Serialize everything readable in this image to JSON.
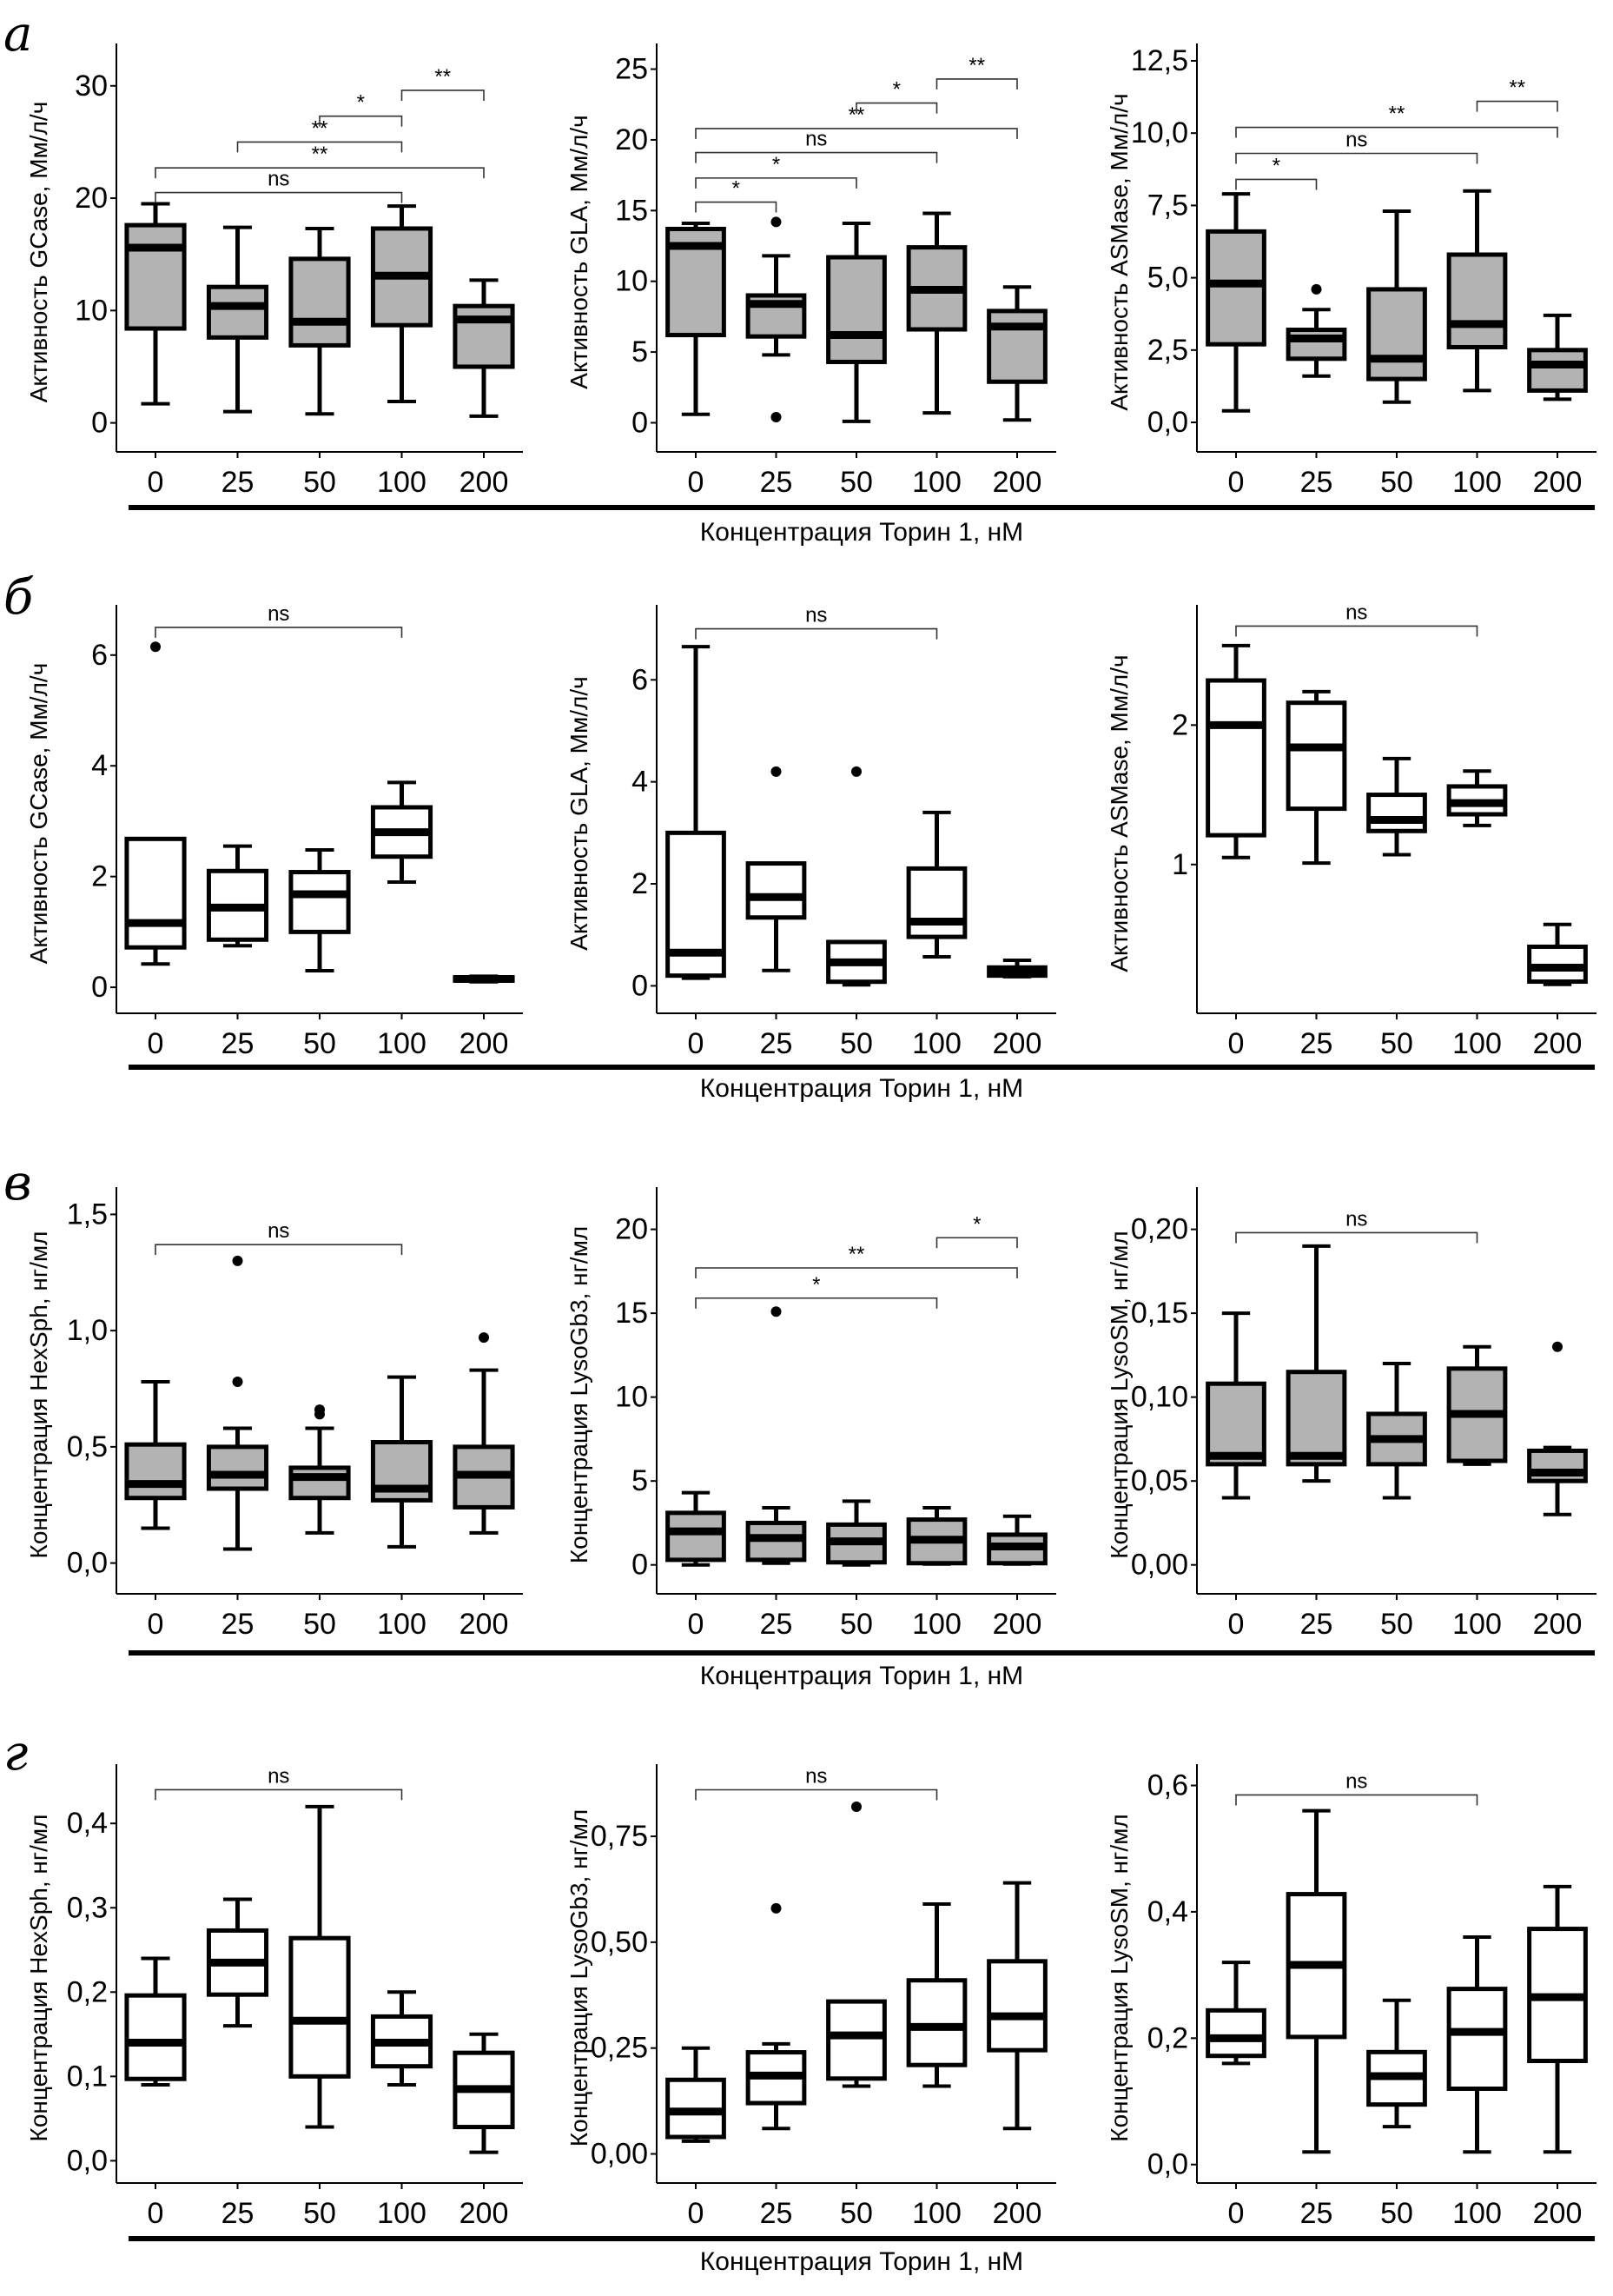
{
  "figure": {
    "x_caption": "Концентрация Торин 1, нМ",
    "fill_colors": {
      "gray": "#b3b3b3",
      "white": "#ffffff"
    }
  },
  "chart_data": [
    {
      "panel": "а",
      "type": "box",
      "row": 0,
      "col": 0,
      "fill": "gray",
      "ylabel": "Активность GCase, Мм/л/ч",
      "categories": [
        "0",
        "25",
        "50",
        "100",
        "200"
      ],
      "ylim": [
        -1.5,
        33
      ],
      "yticks": [
        0,
        10,
        20,
        30
      ],
      "ytick_labels": [
        "0",
        "10",
        "20",
        "30"
      ],
      "boxes": [
        {
          "min": 1.7,
          "q1": 8.4,
          "median": 15.6,
          "q3": 17.6,
          "max": 19.5,
          "outliers": []
        },
        {
          "min": 1.0,
          "q1": 7.6,
          "median": 10.4,
          "q3": 12.1,
          "max": 17.4,
          "outliers": []
        },
        {
          "min": 0.8,
          "q1": 6.9,
          "median": 9.0,
          "q3": 14.6,
          "max": 17.3,
          "outliers": []
        },
        {
          "min": 1.9,
          "q1": 8.7,
          "median": 13.1,
          "q3": 17.3,
          "max": 19.3,
          "outliers": []
        },
        {
          "min": 0.6,
          "q1": 5.0,
          "median": 9.2,
          "q3": 10.4,
          "max": 12.7,
          "outliers": []
        }
      ],
      "significance": [
        {
          "from": 0,
          "to": 3,
          "y": 20.5,
          "label": "ns"
        },
        {
          "from": 0,
          "to": 4,
          "y": 22.7,
          "label": "**"
        },
        {
          "from": 1,
          "to": 3,
          "y": 25.0,
          "label": "**"
        },
        {
          "from": 2,
          "to": 3,
          "y": 27.3,
          "label": "*"
        },
        {
          "from": 3,
          "to": 4,
          "y": 29.6,
          "label": "**"
        }
      ]
    },
    {
      "panel": "",
      "type": "box",
      "row": 0,
      "col": 1,
      "fill": "gray",
      "ylabel": "Активность GLA, Мм/л/ч",
      "categories": [
        "0",
        "25",
        "50",
        "100",
        "200"
      ],
      "ylim": [
        -1.2,
        26.2
      ],
      "yticks": [
        0,
        5,
        10,
        15,
        20,
        25
      ],
      "ytick_labels": [
        "0",
        "5",
        "10",
        "15",
        "20",
        "25"
      ],
      "boxes": [
        {
          "min": 0.6,
          "q1": 6.2,
          "median": 12.5,
          "q3": 13.7,
          "max": 14.1,
          "outliers": []
        },
        {
          "min": 4.8,
          "q1": 6.1,
          "median": 8.4,
          "q3": 9.0,
          "max": 11.8,
          "outliers": [
            14.2,
            0.4
          ]
        },
        {
          "min": 0.1,
          "q1": 4.3,
          "median": 6.2,
          "q3": 11.7,
          "max": 14.1,
          "outliers": []
        },
        {
          "min": 0.7,
          "q1": 6.6,
          "median": 9.4,
          "q3": 12.4,
          "max": 14.8,
          "outliers": []
        },
        {
          "min": 0.2,
          "q1": 2.9,
          "median": 6.8,
          "q3": 7.9,
          "max": 9.6,
          "outliers": []
        }
      ],
      "significance": [
        {
          "from": 0,
          "to": 1,
          "y": 15.6,
          "label": "*"
        },
        {
          "from": 0,
          "to": 2,
          "y": 17.3,
          "label": "*"
        },
        {
          "from": 0,
          "to": 3,
          "y": 19.1,
          "label": "ns"
        },
        {
          "from": 0,
          "to": 4,
          "y": 20.8,
          "label": "**"
        },
        {
          "from": 2,
          "to": 3,
          "y": 22.6,
          "label": "*"
        },
        {
          "from": 3,
          "to": 4,
          "y": 24.3,
          "label": "**"
        }
      ]
    },
    {
      "panel": "",
      "type": "box",
      "row": 0,
      "col": 2,
      "fill": "gray",
      "ylabel": "Активность ASMase, Мм/л/ч",
      "categories": [
        "0",
        "25",
        "50",
        "100",
        "200"
      ],
      "ylim": [
        -0.6,
        12.8
      ],
      "yticks": [
        0,
        2.5,
        5,
        7.5,
        10,
        12.5
      ],
      "ytick_labels": [
        "0,0",
        "2,5",
        "5,0",
        "7,5",
        "10,0",
        "12,5"
      ],
      "boxes": [
        {
          "min": 0.4,
          "q1": 2.7,
          "median": 4.8,
          "q3": 6.6,
          "max": 7.9,
          "outliers": []
        },
        {
          "min": 1.6,
          "q1": 2.2,
          "median": 2.9,
          "q3": 3.2,
          "max": 3.9,
          "outliers": [
            4.6
          ]
        },
        {
          "min": 0.7,
          "q1": 1.5,
          "median": 2.2,
          "q3": 4.6,
          "max": 7.3,
          "outliers": []
        },
        {
          "min": 1.1,
          "q1": 2.6,
          "median": 3.4,
          "q3": 5.8,
          "max": 8.0,
          "outliers": []
        },
        {
          "min": 0.8,
          "q1": 1.1,
          "median": 2.0,
          "q3": 2.5,
          "max": 3.7,
          "outliers": []
        }
      ],
      "significance": [
        {
          "from": 0,
          "to": 1,
          "y": 8.4,
          "label": "*"
        },
        {
          "from": 0,
          "to": 3,
          "y": 9.3,
          "label": "ns"
        },
        {
          "from": 0,
          "to": 4,
          "y": 10.2,
          "label": "**"
        },
        {
          "from": 3,
          "to": 4,
          "y": 11.1,
          "label": "**"
        }
      ]
    },
    {
      "panel": "б",
      "type": "box",
      "row": 1,
      "col": 0,
      "fill": "white",
      "ylabel": "Активность GCase, Мм/л/ч",
      "categories": [
        "0",
        "25",
        "50",
        "100",
        "200"
      ],
      "ylim": [
        -0.25,
        6.75
      ],
      "yticks": [
        0,
        2,
        4,
        6
      ],
      "ytick_labels": [
        "0",
        "2",
        "4",
        "6"
      ],
      "boxes": [
        {
          "min": 0.42,
          "q1": 0.72,
          "median": 1.16,
          "q3": 2.68,
          "max": 2.68,
          "outliers": [
            6.15
          ]
        },
        {
          "min": 0.75,
          "q1": 0.86,
          "median": 1.44,
          "q3": 2.1,
          "max": 2.55,
          "outliers": []
        },
        {
          "min": 0.3,
          "q1": 1.0,
          "median": 1.68,
          "q3": 2.08,
          "max": 2.48,
          "outliers": []
        },
        {
          "min": 1.9,
          "q1": 2.36,
          "median": 2.8,
          "q3": 3.25,
          "max": 3.7,
          "outliers": []
        },
        {
          "min": 0.1,
          "q1": 0.12,
          "median": 0.15,
          "q3": 0.18,
          "max": 0.2,
          "outliers": []
        }
      ],
      "significance": [
        {
          "from": 0,
          "to": 3,
          "y": 6.5,
          "label": "ns"
        }
      ]
    },
    {
      "panel": "",
      "type": "box",
      "row": 1,
      "col": 1,
      "fill": "white",
      "ylabel": "Активность GLA, Мм/л/ч",
      "categories": [
        "0",
        "25",
        "50",
        "100",
        "200"
      ],
      "ylim": [
        -0.3,
        7.3
      ],
      "yticks": [
        0,
        2,
        4,
        6
      ],
      "ytick_labels": [
        "0",
        "2",
        "4",
        "6"
      ],
      "boxes": [
        {
          "min": 0.15,
          "q1": 0.2,
          "median": 0.65,
          "q3": 3.0,
          "max": 6.65,
          "outliers": []
        },
        {
          "min": 0.3,
          "q1": 1.34,
          "median": 1.74,
          "q3": 2.4,
          "max": 2.4,
          "outliers": [
            4.2
          ]
        },
        {
          "min": 0.02,
          "q1": 0.08,
          "median": 0.46,
          "q3": 0.86,
          "max": 0.86,
          "outliers": [
            4.2
          ]
        },
        {
          "min": 0.57,
          "q1": 0.96,
          "median": 1.26,
          "q3": 2.3,
          "max": 3.4,
          "outliers": []
        },
        {
          "min": 0.18,
          "q1": 0.2,
          "median": 0.28,
          "q3": 0.36,
          "max": 0.5,
          "outliers": []
        }
      ],
      "significance": [
        {
          "from": 0,
          "to": 3,
          "y": 7.0,
          "label": "ns"
        }
      ]
    },
    {
      "panel": "",
      "type": "box",
      "row": 1,
      "col": 2,
      "fill": "white",
      "ylabel": "Активность ASMase, Мм/л/ч",
      "categories": [
        "0",
        "25",
        "50",
        "100",
        "200"
      ],
      "ylim": [
        0.02,
        2.8
      ],
      "yticks": [
        1,
        2
      ],
      "ytick_labels": [
        "1",
        "2"
      ],
      "boxes": [
        {
          "min": 1.05,
          "q1": 1.21,
          "median": 2.0,
          "q3": 2.32,
          "max": 2.57,
          "outliers": []
        },
        {
          "min": 1.01,
          "q1": 1.4,
          "median": 1.84,
          "q3": 2.16,
          "max": 2.24,
          "outliers": []
        },
        {
          "min": 1.07,
          "q1": 1.24,
          "median": 1.32,
          "q3": 1.5,
          "max": 1.76,
          "outliers": []
        },
        {
          "min": 1.28,
          "q1": 1.36,
          "median": 1.44,
          "q3": 1.56,
          "max": 1.67,
          "outliers": []
        },
        {
          "min": 0.14,
          "q1": 0.16,
          "median": 0.26,
          "q3": 0.41,
          "max": 0.57,
          "outliers": []
        }
      ],
      "significance": [
        {
          "from": 0,
          "to": 3,
          "y": 2.71,
          "label": "ns"
        }
      ]
    },
    {
      "panel": "в",
      "type": "box",
      "row": 2,
      "col": 0,
      "fill": "gray",
      "ylabel": "Концентрация HexSph, нг/мл",
      "categories": [
        "0",
        "25",
        "50",
        "100",
        "200"
      ],
      "ylim": [
        -0.08,
        1.58
      ],
      "yticks": [
        0,
        0.5,
        1.0,
        1.5
      ],
      "ytick_labels": [
        "0,0",
        "0,5",
        "1,0",
        "1,5"
      ],
      "boxes": [
        {
          "min": 0.15,
          "q1": 0.28,
          "median": 0.34,
          "q3": 0.51,
          "max": 0.78,
          "outliers": []
        },
        {
          "min": 0.06,
          "q1": 0.32,
          "median": 0.38,
          "q3": 0.5,
          "max": 0.58,
          "outliers": [
            1.3,
            0.78
          ]
        },
        {
          "min": 0.13,
          "q1": 0.28,
          "median": 0.37,
          "q3": 0.41,
          "max": 0.58,
          "outliers": [
            0.66,
            0.64
          ]
        },
        {
          "min": 0.07,
          "q1": 0.27,
          "median": 0.32,
          "q3": 0.52,
          "max": 0.8,
          "outliers": []
        },
        {
          "min": 0.13,
          "q1": 0.24,
          "median": 0.38,
          "q3": 0.5,
          "max": 0.83,
          "outliers": [
            0.97
          ]
        }
      ],
      "significance": [
        {
          "from": 0,
          "to": 3,
          "y": 1.37,
          "label": "ns"
        }
      ]
    },
    {
      "panel": "",
      "type": "box",
      "row": 2,
      "col": 1,
      "fill": "gray",
      "ylabel": "Концентрация LysoGb3, нг/мл",
      "categories": [
        "0",
        "25",
        "50",
        "100",
        "200"
      ],
      "ylim": [
        -1.0,
        22.0
      ],
      "yticks": [
        0,
        5,
        10,
        15,
        20
      ],
      "ytick_labels": [
        "0",
        "5",
        "10",
        "15",
        "20"
      ],
      "boxes": [
        {
          "min": 0.0,
          "q1": 0.3,
          "median": 2.0,
          "q3": 3.1,
          "max": 4.3,
          "outliers": []
        },
        {
          "min": 0.1,
          "q1": 0.3,
          "median": 1.6,
          "q3": 2.5,
          "max": 3.4,
          "outliers": [
            15.1
          ]
        },
        {
          "min": 0.0,
          "q1": 0.15,
          "median": 1.4,
          "q3": 2.4,
          "max": 3.8,
          "outliers": []
        },
        {
          "min": 0.05,
          "q1": 0.1,
          "median": 1.5,
          "q3": 2.7,
          "max": 3.4,
          "outliers": []
        },
        {
          "min": 0.05,
          "q1": 0.1,
          "median": 1.1,
          "q3": 1.8,
          "max": 2.9,
          "outliers": []
        }
      ],
      "significance": [
        {
          "from": 0,
          "to": 3,
          "y": 15.9,
          "label": "*"
        },
        {
          "from": 0,
          "to": 4,
          "y": 17.7,
          "label": "**"
        },
        {
          "from": 3,
          "to": 4,
          "y": 19.5,
          "label": "*"
        }
      ]
    },
    {
      "panel": "",
      "type": "box",
      "row": 2,
      "col": 2,
      "fill": "gray",
      "ylabel": "Концентрация LysoSM, нг/мл",
      "categories": [
        "0",
        "25",
        "50",
        "100",
        "200"
      ],
      "ylim": [
        -0.01,
        0.22
      ],
      "yticks": [
        0,
        0.05,
        0.1,
        0.15,
        0.2
      ],
      "ytick_labels": [
        "0,00",
        "0,05",
        "0,10",
        "0,15",
        "0,20"
      ],
      "boxes": [
        {
          "min": 0.04,
          "q1": 0.06,
          "median": 0.065,
          "q3": 0.108,
          "max": 0.15,
          "outliers": []
        },
        {
          "min": 0.05,
          "q1": 0.06,
          "median": 0.065,
          "q3": 0.115,
          "max": 0.19,
          "outliers": []
        },
        {
          "min": 0.04,
          "q1": 0.06,
          "median": 0.075,
          "q3": 0.09,
          "max": 0.12,
          "outliers": []
        },
        {
          "min": 0.06,
          "q1": 0.062,
          "median": 0.09,
          "q3": 0.117,
          "max": 0.13,
          "outliers": []
        },
        {
          "min": 0.03,
          "q1": 0.05,
          "median": 0.055,
          "q3": 0.068,
          "max": 0.07,
          "outliers": [
            0.13
          ]
        }
      ],
      "significance": [
        {
          "from": 0,
          "to": 3,
          "y": 0.198,
          "label": "ns"
        }
      ]
    },
    {
      "panel": "г",
      "type": "box",
      "row": 3,
      "col": 0,
      "fill": "white",
      "ylabel": "Концентрация HexSph, нг/мл",
      "categories": [
        "0",
        "25",
        "50",
        "100",
        "200"
      ],
      "ylim": [
        -0.012,
        0.46
      ],
      "yticks": [
        0,
        0.1,
        0.2,
        0.3,
        0.4
      ],
      "ytick_labels": [
        "0,0",
        "0,1",
        "0,2",
        "0,3",
        "0,4"
      ],
      "boxes": [
        {
          "min": 0.09,
          "q1": 0.097,
          "median": 0.14,
          "q3": 0.196,
          "max": 0.24,
          "outliers": []
        },
        {
          "min": 0.16,
          "q1": 0.197,
          "median": 0.235,
          "q3": 0.273,
          "max": 0.31,
          "outliers": []
        },
        {
          "min": 0.04,
          "q1": 0.1,
          "median": 0.166,
          "q3": 0.264,
          "max": 0.42,
          "outliers": []
        },
        {
          "min": 0.09,
          "q1": 0.112,
          "median": 0.14,
          "q3": 0.171,
          "max": 0.2,
          "outliers": []
        },
        {
          "min": 0.01,
          "q1": 0.04,
          "median": 0.085,
          "q3": 0.128,
          "max": 0.15,
          "outliers": []
        }
      ],
      "significance": [
        {
          "from": 0,
          "to": 3,
          "y": 0.44,
          "label": "ns"
        }
      ]
    },
    {
      "panel": "",
      "type": "box",
      "row": 3,
      "col": 1,
      "fill": "white",
      "ylabel": "Концентрация LysoGb3, нг/мл",
      "categories": [
        "0",
        "25",
        "50",
        "100",
        "200"
      ],
      "ylim": [
        -0.04,
        0.9
      ],
      "yticks": [
        0,
        0.25,
        0.5,
        0.75
      ],
      "ytick_labels": [
        "0,00",
        "0,25",
        "0,50",
        "0,75"
      ],
      "boxes": [
        {
          "min": 0.03,
          "q1": 0.04,
          "median": 0.1,
          "q3": 0.175,
          "max": 0.25,
          "outliers": []
        },
        {
          "min": 0.06,
          "q1": 0.12,
          "median": 0.185,
          "q3": 0.24,
          "max": 0.26,
          "outliers": [
            0.58
          ]
        },
        {
          "min": 0.16,
          "q1": 0.178,
          "median": 0.28,
          "q3": 0.36,
          "max": 0.36,
          "outliers": [
            0.82
          ]
        },
        {
          "min": 0.16,
          "q1": 0.21,
          "median": 0.3,
          "q3": 0.41,
          "max": 0.59,
          "outliers": []
        },
        {
          "min": 0.06,
          "q1": 0.245,
          "median": 0.325,
          "q3": 0.455,
          "max": 0.64,
          "outliers": []
        }
      ],
      "significance": [
        {
          "from": 0,
          "to": 3,
          "y": 0.86,
          "label": "ns"
        }
      ]
    },
    {
      "panel": "",
      "type": "box",
      "row": 3,
      "col": 2,
      "fill": "white",
      "ylabel": "Концентрация LysoSM, нг/мл",
      "categories": [
        "0",
        "25",
        "50",
        "100",
        "200"
      ],
      "ylim": [
        -0.01,
        0.62
      ],
      "yticks": [
        0,
        0.2,
        0.4,
        0.6
      ],
      "ytick_labels": [
        "0,0",
        "0,2",
        "0,4",
        "0,6"
      ],
      "boxes": [
        {
          "min": 0.16,
          "q1": 0.172,
          "median": 0.2,
          "q3": 0.244,
          "max": 0.32,
          "outliers": []
        },
        {
          "min": 0.02,
          "q1": 0.202,
          "median": 0.316,
          "q3": 0.428,
          "max": 0.56,
          "outliers": []
        },
        {
          "min": 0.06,
          "q1": 0.095,
          "median": 0.14,
          "q3": 0.178,
          "max": 0.26,
          "outliers": []
        },
        {
          "min": 0.02,
          "q1": 0.12,
          "median": 0.21,
          "q3": 0.278,
          "max": 0.36,
          "outliers": []
        },
        {
          "min": 0.02,
          "q1": 0.164,
          "median": 0.265,
          "q3": 0.373,
          "max": 0.44,
          "outliers": []
        }
      ],
      "significance": [
        {
          "from": 0,
          "to": 3,
          "y": 0.585,
          "label": "ns"
        }
      ]
    }
  ]
}
